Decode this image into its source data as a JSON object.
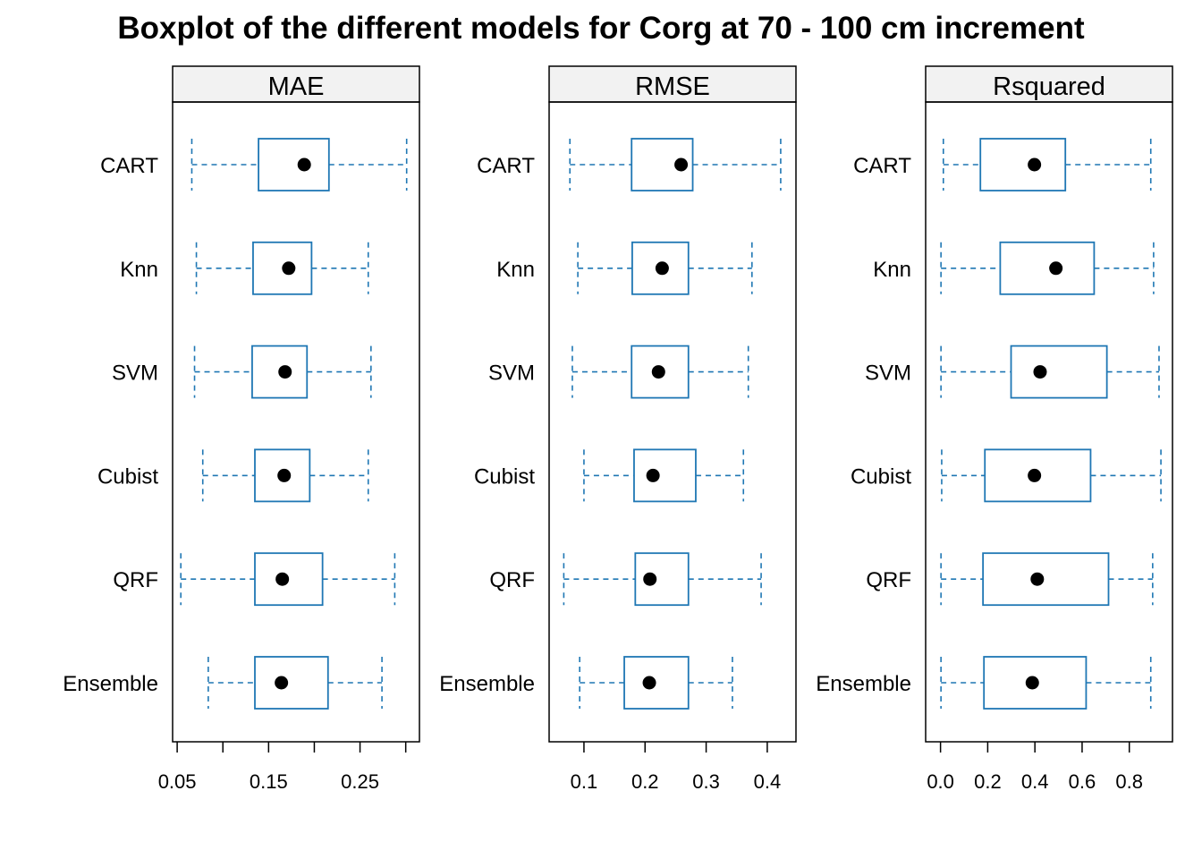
{
  "chart_data": {
    "type": "boxplot",
    "title": "Boxplot of the different models for Corg at 70 - 100 cm increment",
    "categories": [
      "CART",
      "Knn",
      "SVM",
      "Cubist",
      "QRF",
      "Ensemble"
    ],
    "colors": {
      "box": "#1f77b4",
      "median_dot": "#000000",
      "strip_bg": "#f2f2f2",
      "frame": "#000000"
    },
    "grid": false,
    "panels": [
      {
        "name": "MAE",
        "xlim": [
          0.045,
          0.315
        ],
        "ticks": [
          0.05,
          0.1,
          0.15,
          0.2,
          0.25,
          0.3
        ],
        "tick_labels": [
          "0.05",
          "",
          "0.15",
          "",
          "0.25",
          ""
        ],
        "boxes": [
          {
            "category": "CART",
            "min": 0.066,
            "q1": 0.139,
            "median": 0.189,
            "q3": 0.216,
            "max": 0.301
          },
          {
            "category": "Knn",
            "min": 0.071,
            "q1": 0.133,
            "median": 0.172,
            "q3": 0.197,
            "max": 0.259
          },
          {
            "category": "SVM",
            "min": 0.069,
            "q1": 0.132,
            "median": 0.168,
            "q3": 0.192,
            "max": 0.262
          },
          {
            "category": "Cubist",
            "min": 0.078,
            "q1": 0.135,
            "median": 0.167,
            "q3": 0.195,
            "max": 0.259
          },
          {
            "category": "QRF",
            "min": 0.054,
            "q1": 0.135,
            "median": 0.165,
            "q3": 0.209,
            "max": 0.288
          },
          {
            "category": "Ensemble",
            "min": 0.084,
            "q1": 0.135,
            "median": 0.164,
            "q3": 0.215,
            "max": 0.274
          }
        ]
      },
      {
        "name": "RMSE",
        "xlim": [
          0.043,
          0.447
        ],
        "ticks": [
          0.1,
          0.2,
          0.3,
          0.4
        ],
        "tick_labels": [
          "0.1",
          "0.2",
          "0.3",
          "0.4"
        ],
        "boxes": [
          {
            "category": "CART",
            "min": 0.077,
            "q1": 0.178,
            "median": 0.259,
            "q3": 0.278,
            "max": 0.422
          },
          {
            "category": "Knn",
            "min": 0.09,
            "q1": 0.179,
            "median": 0.228,
            "q3": 0.271,
            "max": 0.375
          },
          {
            "category": "SVM",
            "min": 0.081,
            "q1": 0.178,
            "median": 0.222,
            "q3": 0.271,
            "max": 0.369
          },
          {
            "category": "Cubist",
            "min": 0.1,
            "q1": 0.182,
            "median": 0.213,
            "q3": 0.283,
            "max": 0.361
          },
          {
            "category": "QRF",
            "min": 0.067,
            "q1": 0.184,
            "median": 0.208,
            "q3": 0.271,
            "max": 0.39
          },
          {
            "category": "Ensemble",
            "min": 0.093,
            "q1": 0.166,
            "median": 0.207,
            "q3": 0.271,
            "max": 0.343
          }
        ]
      },
      {
        "name": "Rsquared",
        "xlim": [
          -0.063,
          0.983
        ],
        "ticks": [
          0.0,
          0.2,
          0.4,
          0.6,
          0.8
        ],
        "tick_labels": [
          "0.0",
          "0.2",
          "0.4",
          "0.6",
          "0.8"
        ],
        "boxes": [
          {
            "category": "CART",
            "min": 0.012,
            "q1": 0.169,
            "median": 0.398,
            "q3": 0.529,
            "max": 0.891
          },
          {
            "category": "Knn",
            "min": 0.002,
            "q1": 0.253,
            "median": 0.489,
            "q3": 0.651,
            "max": 0.903
          },
          {
            "category": "SVM",
            "min": 0.002,
            "q1": 0.299,
            "median": 0.422,
            "q3": 0.705,
            "max": 0.926
          },
          {
            "category": "Cubist",
            "min": 0.005,
            "q1": 0.188,
            "median": 0.398,
            "q3": 0.636,
            "max": 0.934
          },
          {
            "category": "QRF",
            "min": 0.002,
            "q1": 0.18,
            "median": 0.41,
            "q3": 0.712,
            "max": 0.899
          },
          {
            "category": "Ensemble",
            "min": 0.002,
            "q1": 0.184,
            "median": 0.389,
            "q3": 0.617,
            "max": 0.891
          }
        ]
      }
    ]
  }
}
